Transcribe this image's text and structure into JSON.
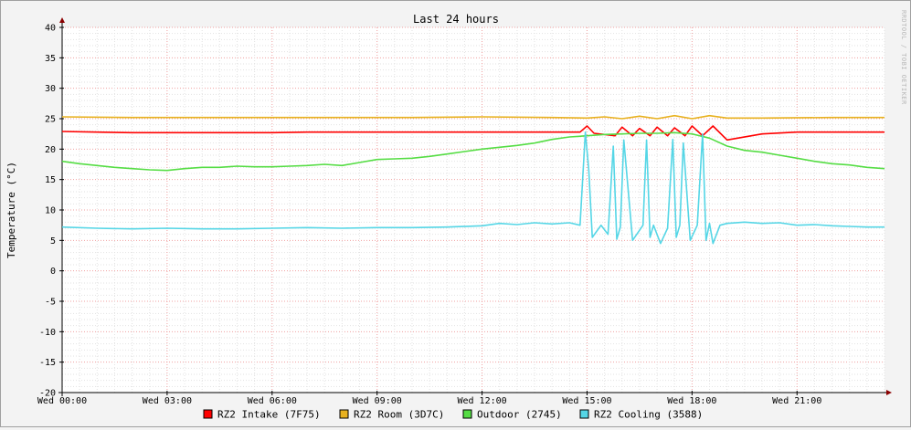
{
  "chart_data": {
    "type": "line",
    "title": "Last 24 hours",
    "ylabel": "Temperature (°C)",
    "watermark": "RRDTOOL / TOBI OETIKER",
    "ylim": [
      -20,
      40
    ],
    "yticks": [
      40,
      35,
      30,
      25,
      20,
      15,
      10,
      5,
      0,
      -5,
      -10,
      -15,
      -20
    ],
    "xlim_hours": [
      0,
      23.5
    ],
    "xticks": [
      {
        "hour": 0,
        "label": "Wed 00:00"
      },
      {
        "hour": 3,
        "label": "Wed 03:00"
      },
      {
        "hour": 6,
        "label": "Wed 06:00"
      },
      {
        "hour": 9,
        "label": "Wed 09:00"
      },
      {
        "hour": 12,
        "label": "Wed 12:00"
      },
      {
        "hour": 15,
        "label": "Wed 15:00"
      },
      {
        "hour": 18,
        "label": "Wed 18:00"
      },
      {
        "hour": 21,
        "label": "Wed 21:00"
      }
    ],
    "grid": true,
    "legend_position": "bottom",
    "series": [
      {
        "name": "RZ2 Intake (7F75)",
        "color": "#ff0000",
        "x": [
          0,
          1,
          2,
          3,
          4,
          5,
          6,
          7,
          8,
          9,
          10,
          11,
          12,
          13,
          14,
          14.8,
          15.0,
          15.2,
          15.5,
          15.8,
          16.0,
          16.3,
          16.5,
          16.8,
          17.0,
          17.3,
          17.5,
          17.8,
          18.0,
          18.3,
          18.6,
          19,
          20,
          21,
          22,
          23.5
        ],
        "y": [
          22.9,
          22.8,
          22.7,
          22.7,
          22.7,
          22.7,
          22.7,
          22.8,
          22.8,
          22.8,
          22.8,
          22.8,
          22.8,
          22.8,
          22.8,
          22.8,
          23.8,
          22.6,
          22.4,
          22.2,
          23.6,
          22.2,
          23.4,
          22.2,
          23.6,
          22.2,
          23.5,
          22.2,
          23.8,
          22.2,
          23.8,
          21.5,
          22.5,
          22.8,
          22.8,
          22.8
        ]
      },
      {
        "name": "RZ2 Room (3D7C)",
        "color": "#e8b220",
        "x": [
          0,
          2,
          4,
          6,
          8,
          10,
          12,
          14,
          15,
          15.5,
          16,
          16.5,
          17,
          17.5,
          18,
          18.5,
          19,
          20,
          22,
          23.5
        ],
        "y": [
          25.3,
          25.2,
          25.2,
          25.2,
          25.2,
          25.2,
          25.3,
          25.2,
          25.1,
          25.3,
          25.0,
          25.4,
          25.0,
          25.5,
          25.0,
          25.5,
          25.1,
          25.1,
          25.2,
          25.2
        ]
      },
      {
        "name": "Outdoor (2745)",
        "color": "#55dd44",
        "x": [
          0,
          0.5,
          1,
          1.5,
          2,
          2.5,
          3,
          3.5,
          4,
          4.5,
          5,
          5.5,
          6,
          6.5,
          7,
          7.5,
          8,
          8.5,
          9,
          9.5,
          10,
          10.5,
          11,
          11.5,
          12,
          12.5,
          13,
          13.5,
          14,
          14.5,
          15,
          15.5,
          16,
          16.5,
          17,
          17.5,
          18,
          18.5,
          19,
          19.5,
          20,
          20.5,
          21,
          21.5,
          22,
          22.5,
          23,
          23.5
        ],
        "y": [
          18.0,
          17.6,
          17.3,
          17.0,
          16.8,
          16.6,
          16.5,
          16.8,
          17.0,
          17.0,
          17.2,
          17.1,
          17.1,
          17.2,
          17.3,
          17.5,
          17.3,
          17.8,
          18.3,
          18.4,
          18.5,
          18.8,
          19.2,
          19.6,
          20.0,
          20.3,
          20.6,
          21.0,
          21.6,
          22.0,
          22.2,
          22.4,
          22.5,
          22.6,
          22.6,
          22.7,
          22.5,
          21.8,
          20.5,
          19.8,
          19.5,
          19.0,
          18.5,
          18.0,
          17.6,
          17.4,
          17.0,
          16.8
        ]
      },
      {
        "name": "RZ2 Cooling (3588)",
        "color": "#55d6e6",
        "x": [
          0,
          1,
          2,
          3,
          4,
          5,
          6,
          7,
          8,
          9,
          10,
          11,
          12,
          12.5,
          13,
          13.5,
          14,
          14.5,
          14.8,
          14.95,
          15.05,
          15.15,
          15.4,
          15.6,
          15.75,
          15.85,
          15.95,
          16.05,
          16.3,
          16.6,
          16.7,
          16.8,
          16.9,
          17.1,
          17.3,
          17.45,
          17.55,
          17.65,
          17.75,
          17.95,
          18.15,
          18.3,
          18.4,
          18.5,
          18.6,
          18.8,
          19.0,
          19.5,
          20,
          20.5,
          21,
          21.5,
          22,
          22.5,
          23,
          23.5
        ],
        "y": [
          7.2,
          7.0,
          6.9,
          7.0,
          6.9,
          6.9,
          7.0,
          7.1,
          7.0,
          7.1,
          7.1,
          7.2,
          7.4,
          7.8,
          7.6,
          7.9,
          7.7,
          7.9,
          7.5,
          22.8,
          16.5,
          5.5,
          7.5,
          6.0,
          20.5,
          5.2,
          7.2,
          21.5,
          5.0,
          7.5,
          21.5,
          5.5,
          7.5,
          4.5,
          7.0,
          21.6,
          5.5,
          7.5,
          21.0,
          5.0,
          7.5,
          22.5,
          5.0,
          7.8,
          4.5,
          7.5,
          7.8,
          8.0,
          7.8,
          7.9,
          7.5,
          7.6,
          7.4,
          7.3,
          7.2,
          7.2
        ]
      }
    ]
  }
}
